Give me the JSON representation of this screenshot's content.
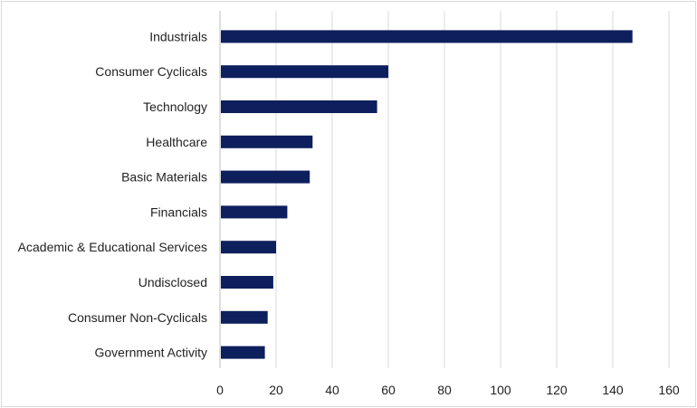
{
  "chart_data": {
    "type": "bar",
    "orientation": "horizontal",
    "categories": [
      "Industrials",
      "Consumer Cyclicals",
      "Technology",
      "Healthcare",
      "Basic Materials",
      "Financials",
      "Academic & Educational Services",
      "Undisclosed",
      "Consumer Non-Cyclicals",
      "Government Activity"
    ],
    "values": [
      147,
      60,
      56,
      33,
      32,
      24,
      20,
      19,
      17,
      16
    ],
    "title": "",
    "xlabel": "",
    "ylabel": "",
    "xlim": [
      0,
      160
    ],
    "xticks": [
      "0",
      "20",
      "40",
      "60",
      "80",
      "100",
      "120",
      "140",
      "160"
    ],
    "grid": "vertical",
    "legend": "none",
    "bar_color": "#0d1f5c"
  }
}
